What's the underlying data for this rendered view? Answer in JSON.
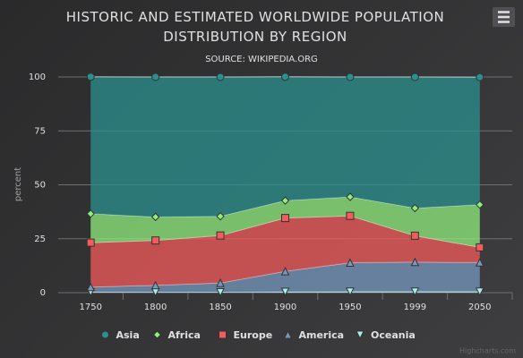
{
  "chart_data": {
    "type": "area_percent",
    "title": "HISTORIC AND ESTIMATED WORLDWIDE POPULATION DISTRIBUTION BY REGION",
    "subtitle": "SOURCE: WIKIPEDIA.ORG",
    "y_axis_title": "percent",
    "credits": "Highcharts.com",
    "categories": [
      "1750",
      "1800",
      "1850",
      "1900",
      "1950",
      "1999",
      "2050"
    ],
    "series": [
      {
        "name": "Asia",
        "color": "#2b908f",
        "marker": "circle",
        "values": [
          63.5,
          64.9,
          64.6,
          57.4,
          55.6,
          60.8,
          59.1
        ]
      },
      {
        "name": "Africa",
        "color": "#90ee7e",
        "marker": "diamond",
        "values": [
          13.4,
          10.9,
          8.9,
          8.1,
          8.8,
          12.8,
          19.8
        ]
      },
      {
        "name": "Europe",
        "color": "#f45b5b",
        "marker": "square",
        "values": [
          20.6,
          20.8,
          22.0,
          24.7,
          21.7,
          12.2,
          7.0
        ]
      },
      {
        "name": "America",
        "color": "#7798BF",
        "marker": "triangle",
        "values": [
          2.3,
          3.2,
          4.3,
          9.5,
          13.4,
          13.7,
          13.5
        ]
      },
      {
        "name": "Oceania",
        "color": "#aaeeee",
        "marker": "triangle-down",
        "values": [
          0.3,
          0.2,
          0.2,
          0.4,
          0.5,
          0.5,
          0.5
        ]
      }
    ],
    "ylim": [
      0,
      100
    ],
    "yticks": [
      0,
      25,
      50,
      75,
      100
    ],
    "grid": true,
    "legend": "bottom"
  }
}
